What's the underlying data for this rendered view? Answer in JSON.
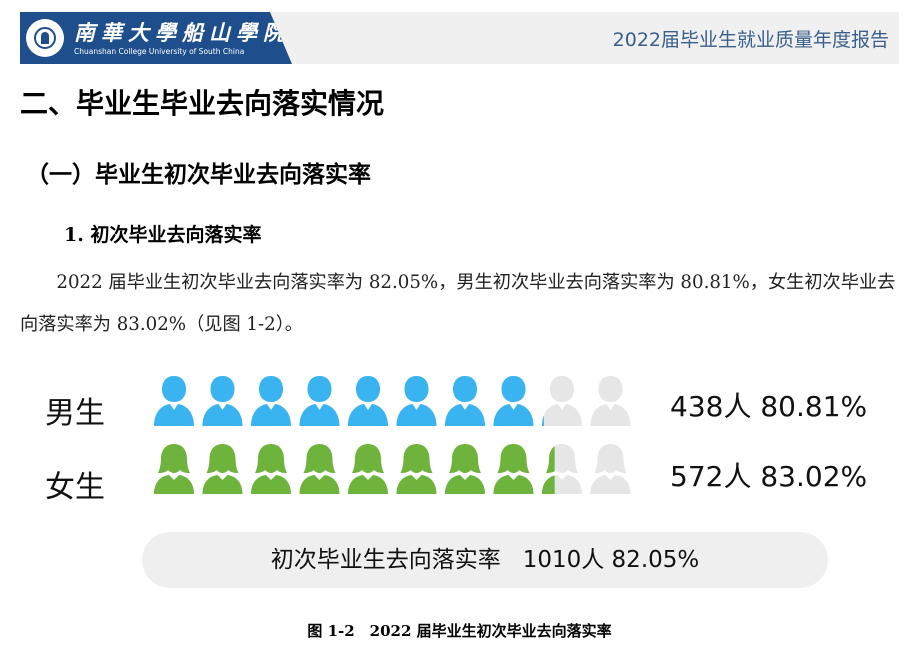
{
  "header": {
    "logo_cn": "南華大學船山學院",
    "logo_en": "Chuanshan College University of South China",
    "report_title": "2022届毕业生就业质量年度报告"
  },
  "headings": {
    "h1": "二、毕业生毕业去向落实情况",
    "h2": "（一）毕业生初次毕业去向落实率",
    "h3": "1. 初次毕业去向落实率"
  },
  "paragraph": "2022 届毕业生初次毕业去向落实率为 82.05%，男生初次毕业去向落实率为 80.81%，女生初次毕业去向落实率为 83.02%（见图 1-2）。",
  "chart_data": {
    "type": "pictogram",
    "icons_total": 10,
    "rows": [
      {
        "label": "男生",
        "count": "438人",
        "rate_text": "80.81%",
        "rate": 80.81,
        "color": "#3ab4f0"
      },
      {
        "label": "女生",
        "count": "572人",
        "rate_text": "83.02%",
        "rate": 83.02,
        "color": "#6eb43c"
      }
    ],
    "inactive_color": "#e6e6e6",
    "summary": {
      "label": "初次毕业生去向落实率",
      "count": "1010人",
      "rate_text": "82.05%"
    }
  },
  "caption": "图 1-2　2022 届毕业生初次毕业去向落实率"
}
